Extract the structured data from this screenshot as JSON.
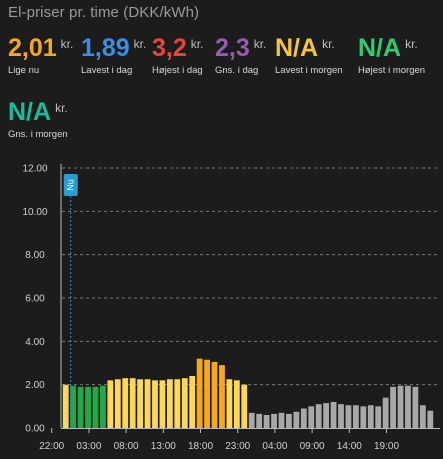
{
  "title": "El-priser pr. time (DKK/kWh)",
  "unit": "kr.",
  "stats": [
    {
      "value": "2,01",
      "label": "Lige nu",
      "color": "#f5a623"
    },
    {
      "value": "1,89",
      "label": "Lavest i dag",
      "color": "#3a8ee6"
    },
    {
      "value": "3,2",
      "label": "Højest i dag",
      "color": "#e8453c"
    },
    {
      "value": "2,3",
      "label": "Gns. i dag",
      "color": "#9b59b6"
    },
    {
      "value": "N/A",
      "label": "Lavest i morgen",
      "color": "#f4c542"
    },
    {
      "value": "N/A",
      "label": "Højest i morgen",
      "color": "#2ecc71"
    },
    {
      "value": "N/A",
      "label": "Gns. i morgen",
      "color": "#1abc9c"
    }
  ],
  "now_marker": {
    "label": "Nu",
    "color": "#2b9bd4",
    "hour_index": 0
  },
  "colors": {
    "lowest": "#22a844",
    "normal": "#fdd65c",
    "high": "#f4a81d",
    "tomorrow": "#a8a8a8",
    "grid": "#7a7a7a",
    "axis": "#bbbbbb"
  },
  "chart_data": {
    "type": "bar",
    "ylim": [
      0,
      12
    ],
    "yticks": [
      "0.00",
      "2.00",
      "4.00",
      "6.00",
      "8.00",
      "10.00",
      "12.00"
    ],
    "xticks": [
      {
        "index": 0,
        "label": "22:00"
      },
      {
        "index": 5,
        "label": "03:00"
      },
      {
        "index": 10,
        "label": "08:00"
      },
      {
        "index": 15,
        "label": "13:00"
      },
      {
        "index": 20,
        "label": "18:00"
      },
      {
        "index": 25,
        "label": "23:00"
      },
      {
        "index": 30,
        "label": "04:00"
      },
      {
        "index": 35,
        "label": "09:00"
      },
      {
        "index": 40,
        "label": "14:00"
      },
      {
        "index": 45,
        "label": "19:00"
      }
    ],
    "values": [
      2.0,
      1.95,
      1.9,
      1.9,
      1.9,
      1.95,
      2.2,
      2.25,
      2.3,
      2.3,
      2.25,
      2.25,
      2.2,
      2.2,
      2.25,
      2.25,
      2.3,
      2.4,
      3.2,
      3.15,
      3.05,
      2.9,
      2.25,
      2.2,
      2.0,
      0.7,
      0.65,
      0.6,
      0.65,
      0.7,
      0.65,
      0.75,
      0.9,
      1.0,
      1.1,
      1.15,
      1.2,
      1.1,
      1.05,
      1.05,
      1.0,
      1.05,
      1.0,
      1.4,
      1.9,
      1.95,
      1.95,
      1.9,
      1.05,
      0.8
    ],
    "categories_color": [
      "normal",
      "lowest",
      "lowest",
      "lowest",
      "lowest",
      "lowest",
      "normal",
      "normal",
      "normal",
      "normal",
      "normal",
      "normal",
      "normal",
      "normal",
      "normal",
      "normal",
      "normal",
      "normal",
      "high",
      "high",
      "high",
      "high",
      "normal",
      "normal",
      "normal",
      "tomorrow",
      "tomorrow",
      "tomorrow",
      "tomorrow",
      "tomorrow",
      "tomorrow",
      "tomorrow",
      "tomorrow",
      "tomorrow",
      "tomorrow",
      "tomorrow",
      "tomorrow",
      "tomorrow",
      "tomorrow",
      "tomorrow",
      "tomorrow",
      "tomorrow",
      "tomorrow",
      "tomorrow",
      "tomorrow",
      "tomorrow",
      "tomorrow",
      "tomorrow",
      "tomorrow",
      "tomorrow"
    ]
  }
}
